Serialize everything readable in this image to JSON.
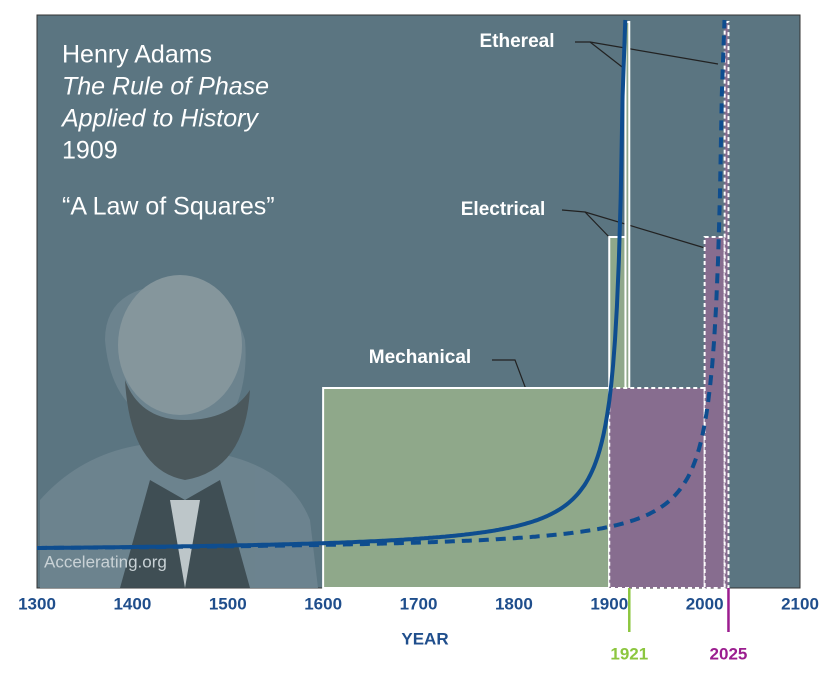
{
  "chart_data": {
    "type": "phases",
    "title": [
      "Henry Adams",
      "The Rule of Phase",
      "Applied to History",
      "1909"
    ],
    "quote": "“A Law of Squares”",
    "watermark": "Accelerating.org",
    "xlabel": "YEAR",
    "xlim": [
      1300,
      2100
    ],
    "xticks": [
      1300,
      1400,
      1500,
      1600,
      1700,
      1800,
      1900,
      2000,
      2100
    ],
    "phases": [
      "Mechanical",
      "Electrical",
      "Ethereal"
    ],
    "series": [
      {
        "color": "#8fa88a",
        "starts": [
          1600,
          1900,
          1917
        ],
        "ends": [
          1900,
          1917,
          1921
        ]
      },
      {
        "color": "#876d8f",
        "starts": [
          1900,
          2000,
          2021
        ],
        "ends": [
          2000,
          2021,
          2025
        ]
      }
    ],
    "markers": [
      {
        "value": 1921,
        "color": "#8cc63f"
      },
      {
        "value": 2025,
        "color": "#9b1d8f"
      }
    ],
    "curve_color": "#0e4d8f"
  }
}
